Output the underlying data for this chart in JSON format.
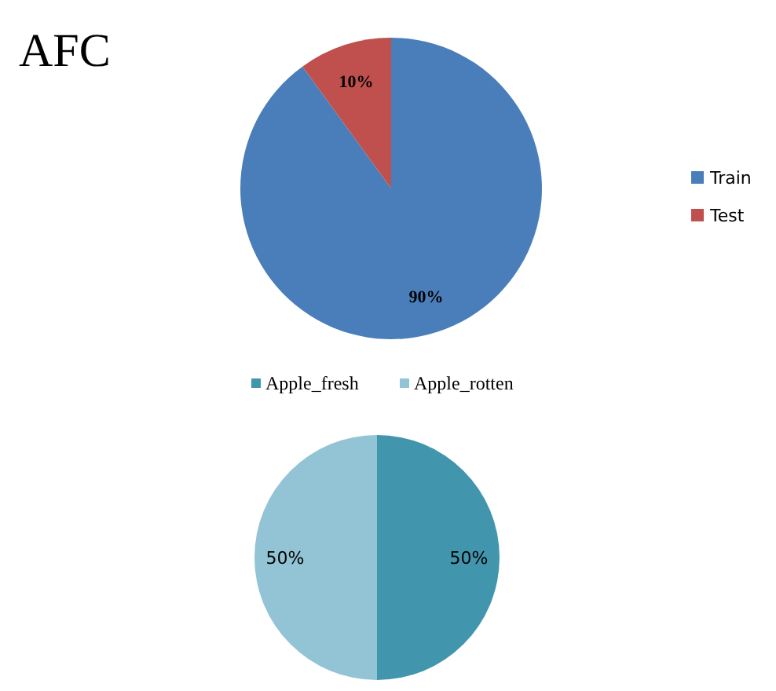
{
  "chart_data": [
    {
      "type": "pie",
      "title": "AFC",
      "categories": [
        "Train",
        "Test"
      ],
      "values": [
        90,
        10
      ],
      "colors": [
        "#4a7ebb",
        "#c0504d"
      ],
      "value_labels": [
        "90%",
        "10%"
      ],
      "legend": "right"
    },
    {
      "type": "pie",
      "categories": [
        "Apple_fresh",
        "Apple_rotten"
      ],
      "values": [
        50,
        50
      ],
      "colors": [
        "#4196ad",
        "#93c4d6"
      ],
      "value_labels": [
        "50%",
        "50%"
      ],
      "legend": "top"
    }
  ]
}
